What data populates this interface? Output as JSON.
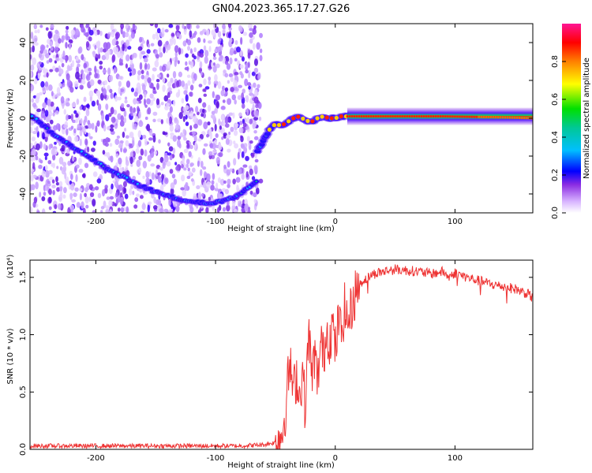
{
  "title": "GN04.2023.365.17.27.G26",
  "colorbar": {
    "label": "Normalized spectral amplitude",
    "range": [
      0,
      1
    ],
    "ticks": [
      {
        "v": 0.0,
        "label": "0.0"
      },
      {
        "v": 0.2,
        "label": "0.2"
      },
      {
        "v": 0.4,
        "label": "0.4"
      },
      {
        "v": 0.6,
        "label": "0.6"
      },
      {
        "v": 0.8,
        "label": "0.8"
      }
    ]
  },
  "chart_data": [
    {
      "type": "heatmap",
      "xlabel": "Height of straight line (km)",
      "ylabel": "Frequency (Hz)",
      "xlim": [
        -255,
        165
      ],
      "ylim": [
        -50,
        50
      ],
      "x_ticks": [
        {
          "v": -200,
          "label": "-200"
        },
        {
          "v": -100,
          "label": "-100"
        },
        {
          "v": 0,
          "label": "0"
        },
        {
          "v": 100,
          "label": "100"
        }
      ],
      "y_ticks": [
        {
          "v": -40,
          "label": "-40"
        },
        {
          "v": -20,
          "label": "-20"
        },
        {
          "v": 0,
          "label": "0"
        },
        {
          "v": 20,
          "label": "20"
        },
        {
          "v": 40,
          "label": "40"
        }
      ],
      "noise_region_x": [
        -255,
        -62
      ],
      "curve_left": {
        "x": [
          -255,
          -240,
          -225,
          -210,
          -195,
          -180,
          -165,
          -150,
          -135,
          -120,
          -105,
          -95,
          -85,
          -75,
          -65
        ],
        "y": [
          2,
          -6,
          -13,
          -19,
          -25,
          -30,
          -35,
          -39,
          -42,
          -44,
          -45,
          -44,
          -42,
          -38,
          -33
        ]
      },
      "curve_mid": {
        "x": [
          -65,
          -60,
          -55,
          -50,
          -45,
          -40,
          -35,
          -30,
          -25,
          -20,
          -15,
          -10,
          -5,
          0,
          5,
          10
        ],
        "y": [
          -17,
          -12,
          -6,
          -3,
          -4,
          -2,
          0,
          1,
          -1,
          -2,
          0,
          1,
          0,
          0,
          1,
          1
        ]
      },
      "curve_right": {
        "x": [
          10,
          30,
          50,
          70,
          90,
          110,
          130,
          150,
          165
        ],
        "y": [
          1,
          1,
          1,
          1,
          1,
          0.8,
          0.6,
          0.3,
          0
        ]
      }
    },
    {
      "type": "line",
      "xlabel": "Height of straight line (km)",
      "ylabel": "SNR (10 * v/v)",
      "y_multiplier": "(x10⁴)",
      "xlim": [
        -255,
        165
      ],
      "ylim": [
        0,
        1.65
      ],
      "x_ticks": [
        {
          "v": -200,
          "label": "-200"
        },
        {
          "v": -100,
          "label": "-100"
        },
        {
          "v": 0,
          "label": "0"
        },
        {
          "v": 100,
          "label": "100"
        }
      ],
      "y_ticks": [
        {
          "v": 0.0,
          "label": "0.0"
        },
        {
          "v": 0.5,
          "label": "0.5"
        },
        {
          "v": 1.0,
          "label": "1.0"
        },
        {
          "v": 1.5,
          "label": "1.5"
        }
      ],
      "series": [
        {
          "color": "#ee3333",
          "x": [
            -255,
            -230,
            -200,
            -170,
            -140,
            -110,
            -80,
            -60,
            -50,
            -45,
            -42,
            -40,
            -38,
            -35,
            -32,
            -30,
            -27,
            -25,
            -22,
            -20,
            -17,
            -15,
            -12,
            -10,
            -7,
            -5,
            -2,
            0,
            3,
            5,
            8,
            10,
            13,
            15,
            18,
            20,
            25,
            30,
            35,
            40,
            45,
            50,
            60,
            70,
            80,
            90,
            95,
            100,
            105,
            110,
            120,
            130,
            140,
            150,
            160,
            165
          ],
          "y": [
            0.03,
            0.03,
            0.03,
            0.03,
            0.03,
            0.03,
            0.03,
            0.04,
            0.06,
            0.12,
            0.3,
            0.55,
            0.75,
            0.5,
            0.65,
            0.45,
            0.7,
            0.3,
            1.1,
            0.6,
            0.85,
            0.55,
            0.95,
            0.8,
            1.05,
            0.95,
            1.1,
            0.85,
            1.15,
            1.0,
            1.25,
            1.1,
            1.2,
            1.3,
            1.4,
            1.45,
            1.48,
            1.52,
            1.54,
            1.55,
            1.56,
            1.57,
            1.56,
            1.55,
            1.53,
            1.55,
            1.5,
            1.54,
            1.52,
            1.5,
            1.47,
            1.44,
            1.42,
            1.4,
            1.36,
            1.32
          ]
        }
      ]
    }
  ]
}
